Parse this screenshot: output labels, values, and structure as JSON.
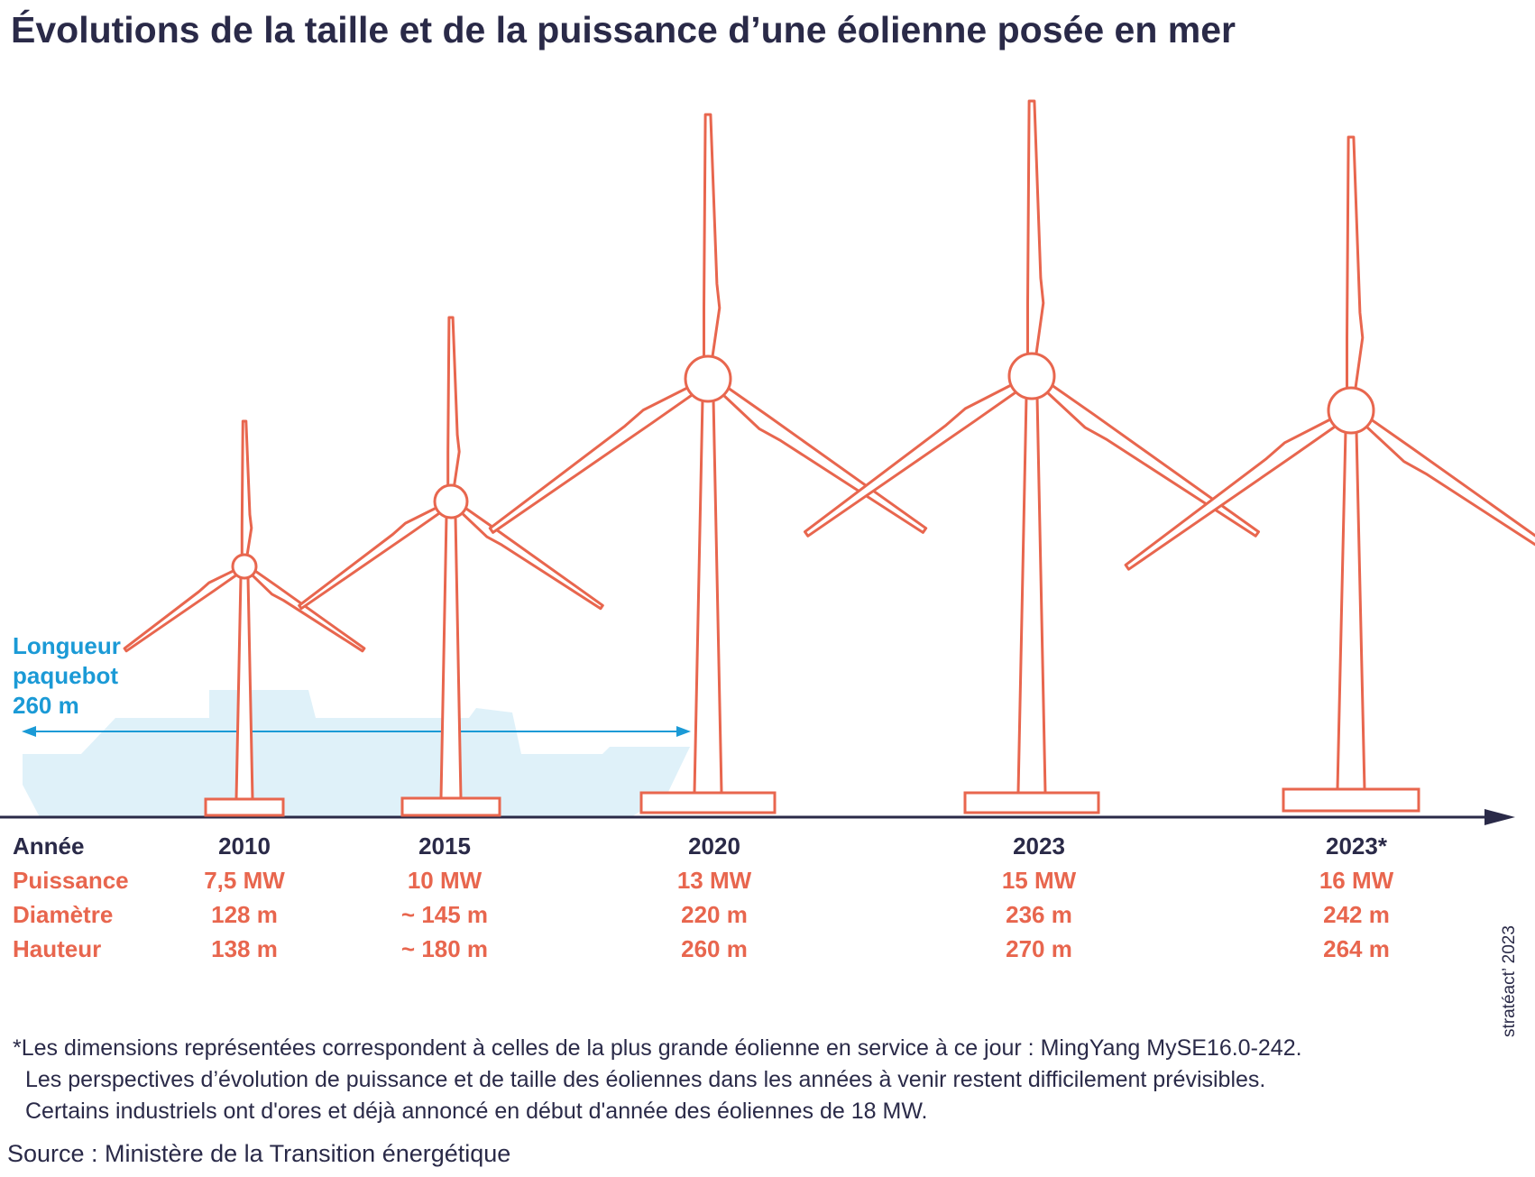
{
  "title": "Évolutions de la taille et de la puissance d’une éolienne posée en mer",
  "row_labels": {
    "annee": "Année",
    "puissance": "Puissance",
    "diametre": "Diamètre",
    "hauteur": "Hauteur"
  },
  "ship": {
    "line1": "Longueur",
    "line2": "paquebot",
    "line3": "260 m"
  },
  "turbines": [
    {
      "year": "2010",
      "power": "7,5 MW",
      "diameter": "128 m",
      "height": "138 m"
    },
    {
      "year": "2015",
      "power": "10 MW",
      "diameter": "~ 145 m",
      "height": "~ 180 m"
    },
    {
      "year": "2020",
      "power": "13 MW",
      "diameter": "220 m",
      "height": "260 m"
    },
    {
      "year": "2023",
      "power": "15 MW",
      "diameter": "236 m",
      "height": "270 m"
    },
    {
      "year": "2023*",
      "power": "16 MW",
      "diameter": "242 m",
      "height": "264 m"
    }
  ],
  "footnote": {
    "line1": "*Les dimensions représentées correspondent à celles de la plus grande éolienne en service à ce jour : MingYang MySE16.0-242.",
    "line2": "Les perspectives d’évolution de puissance et de taille des éoliennes dans les années à venir restent difficilement prévisibles.",
    "line3": "Certains industriels ont d'ores et déjà annoncé en début d'année des éoliennes de 18 MW."
  },
  "source": "Source : Ministère de la Transition énergétique",
  "credit": "stratéact’ 2023",
  "colors": {
    "turbine": "#e8664e",
    "ship_fill": "#dff1f9",
    "ship_arrow": "#1b9ad6",
    "axis": "#2a2a48",
    "text": "#2a2a48"
  }
}
